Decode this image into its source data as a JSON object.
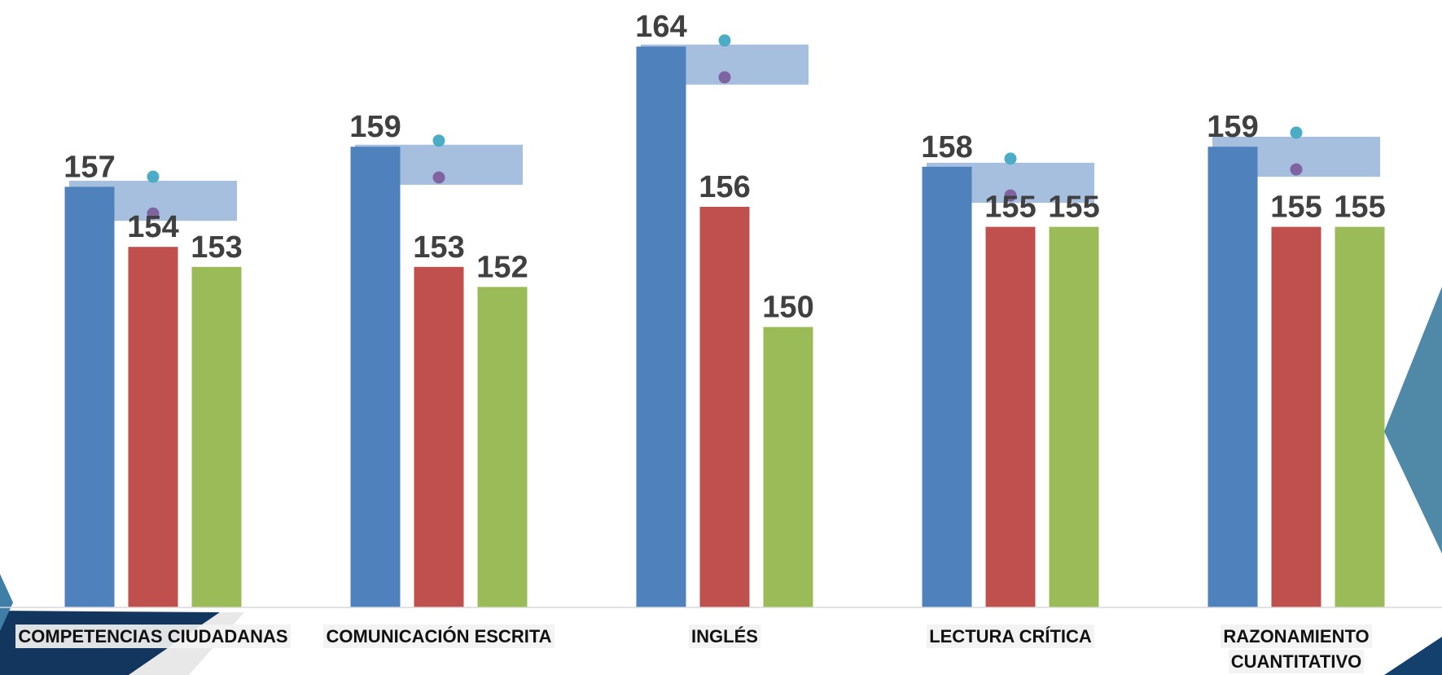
{
  "chart_data": {
    "type": "bar",
    "categories": [
      "COMPETENCIAS CIUDADANAS",
      "COMUNICACIÓN ESCRITA",
      "INGLÉS",
      "LECTURA CRÍTICA",
      "RAZONAMIENTO\nCUANTITATIVO"
    ],
    "series": [
      {
        "color": "#4f81bd",
        "values": [
          157,
          159,
          164,
          158,
          159
        ]
      },
      {
        "color": "#c0504d",
        "values": [
          154,
          153,
          156,
          155,
          155
        ]
      },
      {
        "color": "#9bbb59",
        "values": [
          153,
          152,
          150,
          155,
          155
        ]
      }
    ],
    "range_markers": [
      {
        "upper": 157.3,
        "lower": 155.3
      },
      {
        "upper": 159.1,
        "lower": 157.1
      },
      {
        "upper": 164.1,
        "lower": 162.1
      },
      {
        "upper": 158.2,
        "lower": 156.2
      },
      {
        "upper": 159.5,
        "lower": 157.5
      }
    ],
    "range_band_color": "#a7bfde",
    "upper_marker_color": "#4bacc6",
    "lower_marker_color": "#8064a2",
    "ylim": [
      136,
      166
    ],
    "grid": false,
    "legend": "none",
    "title": "",
    "xlabel": "",
    "ylabel": ""
  }
}
